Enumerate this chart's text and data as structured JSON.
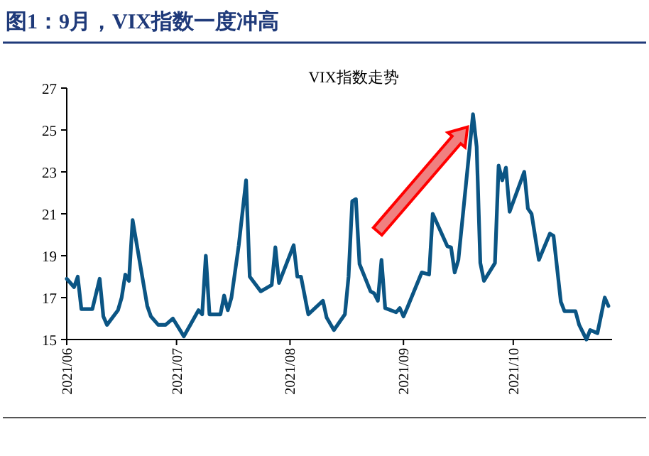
{
  "chart_data": {
    "type": "line",
    "title": "图1：9月，VIX指数一度冲高",
    "subtitle": "VIX指数走势",
    "xlim": [
      "2021-06-01",
      "2021-10-28"
    ],
    "xticks": [
      {
        "value": "2021-06-01",
        "label": "2021/06"
      },
      {
        "value": "2021-07-01",
        "label": "2021/07"
      },
      {
        "value": "2021-08-01",
        "label": "2021/08"
      },
      {
        "value": "2021-09-01",
        "label": "2021/09"
      },
      {
        "value": "2021-10-01",
        "label": "2021/10"
      }
    ],
    "ylim": [
      15,
      27
    ],
    "yticks": [
      15,
      17,
      19,
      21,
      23,
      25,
      27
    ],
    "marker": "none",
    "line_style": "solid",
    "series": [
      {
        "color": "#0b5584",
        "x": [
          "2021-06-01",
          "2021-06-03",
          "2021-06-04",
          "2021-06-05",
          "2021-06-08",
          "2021-06-10",
          "2021-06-11",
          "2021-06-12",
          "2021-06-15",
          "2021-06-16",
          "2021-06-17",
          "2021-06-18",
          "2021-06-19",
          "2021-06-23",
          "2021-06-24",
          "2021-06-26",
          "2021-06-28",
          "2021-06-30",
          "2021-07-03",
          "2021-07-07",
          "2021-07-08",
          "2021-07-09",
          "2021-07-10",
          "2021-07-13",
          "2021-07-14",
          "2021-07-15",
          "2021-07-16",
          "2021-07-18",
          "2021-07-20",
          "2021-07-21",
          "2021-07-24",
          "2021-07-27",
          "2021-07-28",
          "2021-07-29",
          "2021-08-02",
          "2021-08-03",
          "2021-08-04",
          "2021-08-06",
          "2021-08-10",
          "2021-08-11",
          "2021-08-13",
          "2021-08-16",
          "2021-08-17",
          "2021-08-18",
          "2021-08-19",
          "2021-08-20",
          "2021-08-23",
          "2021-08-24",
          "2021-08-25",
          "2021-08-26",
          "2021-08-27",
          "2021-08-30",
          "2021-08-31",
          "2021-09-01",
          "2021-09-02",
          "2021-09-06",
          "2021-09-08",
          "2021-09-09",
          "2021-09-13",
          "2021-09-14",
          "2021-09-15",
          "2021-09-16",
          "2021-09-20",
          "2021-09-21",
          "2021-09-22",
          "2021-09-23",
          "2021-09-26",
          "2021-09-27",
          "2021-09-28",
          "2021-09-29",
          "2021-09-30",
          "2021-10-04",
          "2021-10-05",
          "2021-10-06",
          "2021-10-08",
          "2021-10-11",
          "2021-10-12",
          "2021-10-14",
          "2021-10-15",
          "2021-10-18",
          "2021-10-19",
          "2021-10-21",
          "2021-10-22",
          "2021-10-24",
          "2021-10-26",
          "2021-10-27"
        ],
        "values": [
          17.9,
          17.5,
          18.0,
          16.45,
          16.45,
          17.9,
          16.1,
          15.7,
          16.4,
          17.0,
          18.1,
          17.8,
          20.7,
          16.6,
          16.1,
          15.7,
          15.7,
          16.0,
          15.15,
          16.4,
          16.2,
          19.0,
          16.2,
          16.2,
          17.1,
          16.4,
          17.0,
          19.5,
          22.6,
          18.0,
          17.3,
          17.6,
          19.4,
          17.7,
          19.5,
          18.0,
          18.0,
          16.2,
          16.85,
          16.05,
          15.45,
          16.2,
          18.0,
          21.6,
          21.7,
          18.6,
          17.3,
          17.2,
          16.85,
          18.8,
          16.5,
          16.3,
          16.5,
          16.1,
          16.5,
          18.2,
          18.1,
          21.0,
          19.45,
          19.4,
          18.2,
          18.8,
          25.75,
          24.2,
          18.65,
          17.8,
          18.65,
          23.3,
          22.6,
          23.2,
          21.1,
          23.0,
          21.25,
          21.0,
          18.8,
          20.05,
          19.95,
          16.8,
          16.35,
          16.35,
          15.7,
          15.0,
          15.45,
          15.3,
          17.0,
          16.6
        ]
      }
    ]
  }
}
